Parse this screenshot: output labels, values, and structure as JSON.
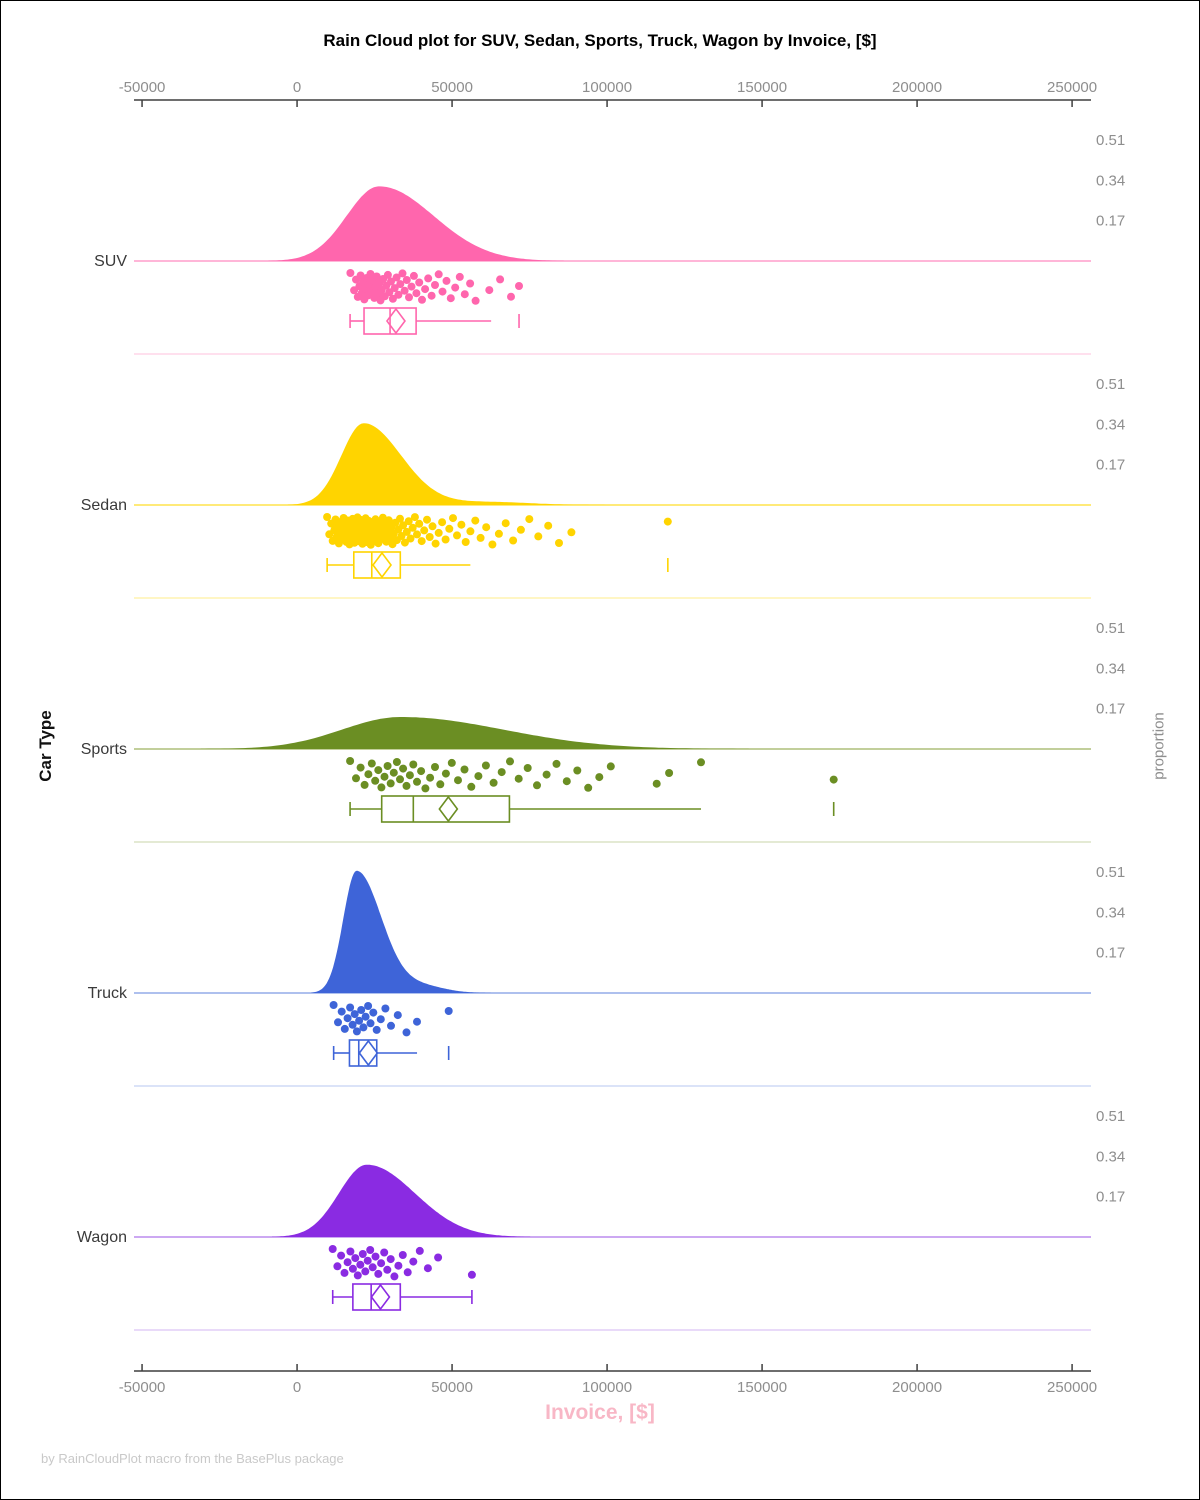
{
  "chart_data": {
    "type": "raincloud",
    "title": "Rain Cloud plot for SUV, Sedan, Sports, Truck, Wagon by Invoice, [$]",
    "xlabel": "Invoice, [$]",
    "ylabel_left": "Car Type",
    "ylabel_right": "proportion",
    "footnote": "by RainCloudPlot macro from the BasePlus package",
    "x_ticks": [
      -50000,
      0,
      50000,
      100000,
      150000,
      200000,
      250000
    ],
    "x_range": [
      -52600,
      256100
    ],
    "proportion_ticks": [
      0.51,
      0.34,
      0.17
    ],
    "legend_position": "none",
    "grid": false,
    "series": [
      {
        "name": "SUV",
        "color": "#ff66ad",
        "baseline_color": "#ff9ecb",
        "separator_color": "#ffd6e9",
        "density": {
          "mode": 26500,
          "sigma_left": 10500,
          "sigma_right": 17500,
          "peak": 0.315
        },
        "box": {
          "whisker_low": 17100,
          "q1": 21600,
          "median": 30000,
          "mean": 31900,
          "q3": 38400,
          "whisker_high": 62600,
          "cap_high": false,
          "outliers": [
            71600
          ]
        },
        "points": [
          17200,
          18400,
          19000,
          19600,
          20100,
          20500,
          20900,
          21300,
          21700,
          22100,
          22500,
          22900,
          23300,
          23700,
          24100,
          24500,
          24900,
          25300,
          25700,
          26100,
          26500,
          26900,
          27300,
          27800,
          28300,
          28800,
          29300,
          29800,
          30300,
          30900,
          31500,
          32100,
          32700,
          33300,
          34000,
          34700,
          35400,
          36100,
          36900,
          37700,
          38500,
          39400,
          40300,
          41300,
          42300,
          43400,
          44500,
          45700,
          46900,
          48200,
          49600,
          51000,
          52500,
          54100,
          55800,
          57600,
          62000,
          65500,
          69000,
          71600
        ]
      },
      {
        "name": "Sedan",
        "color": "#ffd400",
        "baseline_color": "#ffe34d",
        "separator_color": "#fff3b0",
        "density": {
          "mode": 21500,
          "sigma_left": 7200,
          "sigma_right": 12000,
          "peak": 0.345,
          "bump": {
            "x": 62000,
            "h": 0.013,
            "s": 13000
          }
        },
        "box": {
          "whisker_low": 9700,
          "q1": 18300,
          "median": 24100,
          "mean": 27400,
          "q3": 33300,
          "whisker_high": 55900,
          "cap_high": false,
          "outliers": [
            119600
          ]
        },
        "points": [
          9700,
          10400,
          11000,
          11500,
          12000,
          12400,
          12800,
          13200,
          13500,
          13800,
          14100,
          14400,
          14700,
          15000,
          15300,
          15600,
          15900,
          16100,
          16300,
          16500,
          16700,
          16900,
          17100,
          17300,
          17500,
          17700,
          17900,
          18100,
          18300,
          18500,
          18700,
          18900,
          19100,
          19300,
          19500,
          19700,
          19900,
          20100,
          20300,
          20500,
          20700,
          20900,
          21100,
          21300,
          21500,
          21700,
          21900,
          22100,
          22300,
          22500,
          22700,
          22900,
          23100,
          23300,
          23500,
          23800,
          24100,
          24400,
          24700,
          25000,
          25300,
          25600,
          25900,
          26200,
          26500,
          26800,
          27100,
          27400,
          27700,
          28000,
          28400,
          28800,
          29200,
          29600,
          30000,
          30400,
          30800,
          31200,
          31700,
          32200,
          32700,
          33200,
          33700,
          34200,
          34800,
          35400,
          36000,
          36600,
          37300,
          38000,
          38700,
          39400,
          40200,
          41000,
          41900,
          42800,
          43700,
          44700,
          45700,
          46800,
          47900,
          49100,
          50300,
          51600,
          53000,
          54400,
          55900,
          57500,
          59200,
          61000,
          63000,
          65100,
          67300,
          69700,
          72200,
          74900,
          77800,
          81000,
          84500,
          88500,
          119600
        ]
      },
      {
        "name": "Sports",
        "color": "#6b8e23",
        "baseline_color": "#aebf7a",
        "separator_color": "#dbe3c5",
        "density": {
          "mode": 33500,
          "sigma_left": 19000,
          "sigma_right": 33000,
          "peak": 0.135
        },
        "box": {
          "whisker_low": 17100,
          "q1": 27300,
          "median": 37500,
          "mean": 48800,
          "q3": 68500,
          "whisker_high": 130300,
          "cap_high": false,
          "outliers": [
            173100
          ]
        },
        "points": [
          17100,
          19000,
          20500,
          21800,
          23000,
          24100,
          25200,
          26200,
          27200,
          28200,
          29200,
          30200,
          31200,
          32200,
          33200,
          34200,
          35300,
          36400,
          37500,
          38700,
          40000,
          41400,
          42900,
          44500,
          46200,
          48000,
          49900,
          51900,
          54000,
          56200,
          58500,
          60900,
          63400,
          66000,
          68700,
          71500,
          74400,
          77400,
          80500,
          83700,
          87000,
          90400,
          93900,
          97500,
          101200,
          116000,
          120000,
          130300,
          173100
        ]
      },
      {
        "name": "Truck",
        "color": "#3e64d8",
        "baseline_color": "#94abe9",
        "separator_color": "#cfdaf6",
        "density": {
          "mode": 19200,
          "sigma_left": 4300,
          "sigma_right": 8000,
          "peak": 0.515,
          "bump": {
            "x": 40000,
            "h": 0.03,
            "s": 7500
          }
        },
        "box": {
          "whisker_low": 11800,
          "q1": 16900,
          "median": 19900,
          "mean": 23000,
          "q3": 25700,
          "whisker_high": 38700,
          "cap_high": false,
          "outliers": [
            48900
          ]
        },
        "points": [
          11800,
          13200,
          14400,
          15400,
          16300,
          17100,
          17900,
          18600,
          19300,
          20000,
          20700,
          21400,
          22100,
          22900,
          23700,
          24600,
          25700,
          27000,
          28500,
          30300,
          32500,
          35300,
          38700,
          48900
        ]
      },
      {
        "name": "Wagon",
        "color": "#8a2be2",
        "baseline_color": "#bc8bed",
        "separator_color": "#e2cdf7",
        "density": {
          "mode": 22500,
          "sigma_left": 9000,
          "sigma_right": 15500,
          "peak": 0.305
        },
        "box": {
          "whisker_low": 11500,
          "q1": 18000,
          "median": 23900,
          "mean": 26900,
          "q3": 33300,
          "whisker_high": 56400,
          "cap_high": true,
          "outliers": []
        },
        "points": [
          11500,
          13000,
          14200,
          15300,
          16300,
          17200,
          18000,
          18800,
          19600,
          20400,
          21200,
          22000,
          22800,
          23600,
          24400,
          25300,
          26200,
          27100,
          28100,
          29100,
          30200,
          31400,
          32700,
          34100,
          35700,
          37500,
          39600,
          42200,
          45500,
          56400
        ]
      }
    ]
  }
}
